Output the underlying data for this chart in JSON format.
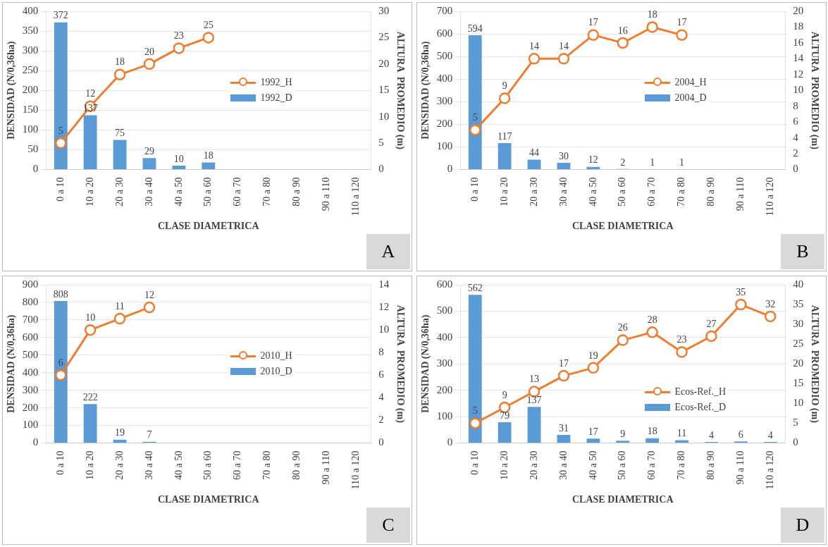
{
  "chart_data": [
    {
      "type": "bar",
      "categories": [
        "0 a 10",
        "10 a 20",
        "20 a 30",
        "30 a 40",
        "40 a 50",
        "50 a 60",
        "60 a 70",
        "70 a 80",
        "80 a 90",
        "90 a 110",
        "110 a 120"
      ],
      "series": [
        {
          "name": "1992_D",
          "color": "#5b9bd5",
          "values": [
            372,
            137,
            75,
            29,
            10,
            18,
            null,
            null,
            null,
            null,
            null
          ]
        },
        {
          "name": "1992_H",
          "type": "line",
          "axis": "y2",
          "color": "#ed7d31",
          "values": [
            5,
            12,
            18,
            20,
            23,
            25,
            null,
            null,
            null,
            null,
            null
          ]
        }
      ],
      "xlabel": "CLASE DIAMETRICA",
      "ylabel": "DENSIDAD (N/0,36ha)",
      "y2label": "ALTURA  PROMEDIO (m)",
      "ylim": [
        0,
        400
      ],
      "yticks": [
        0,
        50,
        100,
        150,
        200,
        250,
        300,
        350,
        400
      ],
      "y2lim": [
        0,
        30
      ],
      "y2ticks": [
        0,
        5,
        10,
        15,
        20,
        25,
        30
      ],
      "grid": "y",
      "legend": "right",
      "marker": "circle",
      "data_labels": true,
      "annotations": [
        "A"
      ]
    },
    {
      "type": "bar",
      "categories": [
        "0 a 10",
        "10 a 20",
        "20 a 30",
        "30 a 40",
        "40 a 50",
        "50 a 60",
        "60 a 70",
        "70 a 80",
        "80 a 90",
        "90 a 110",
        "110 a 120"
      ],
      "series": [
        {
          "name": "2004_D",
          "color": "#5b9bd5",
          "values": [
            594,
            117,
            44,
            30,
            12,
            2,
            1,
            1,
            null,
            null,
            null
          ]
        },
        {
          "name": "2004_H",
          "type": "line",
          "axis": "y2",
          "color": "#ed7d31",
          "values": [
            5,
            9,
            14,
            14,
            17,
            16,
            18,
            17,
            null,
            null,
            null
          ]
        }
      ],
      "xlabel": "CLASE DIAMETRICA",
      "ylabel": "DENSIDAD (N/0,36ha)",
      "y2label": "ALTURA  PROMEDIO (m)",
      "ylim": [
        0,
        700
      ],
      "yticks": [
        0,
        100,
        200,
        300,
        400,
        500,
        600,
        700
      ],
      "y2lim": [
        0,
        20
      ],
      "y2ticks": [
        0,
        2,
        4,
        6,
        8,
        10,
        12,
        14,
        16,
        18,
        20
      ],
      "grid": "y",
      "legend": "right",
      "marker": "circle",
      "data_labels": true,
      "annotations": [
        "B"
      ]
    },
    {
      "type": "bar",
      "categories": [
        "0 a 10",
        "10 a 20",
        "20 a 30",
        "30 a 40",
        "40 a 50",
        "50 a 60",
        "60 a 70",
        "70 a 80",
        "80 a 90",
        "90 a 110",
        "110 a 120"
      ],
      "series": [
        {
          "name": "2010_D",
          "color": "#5b9bd5",
          "values": [
            808,
            222,
            19,
            7,
            null,
            null,
            null,
            null,
            null,
            null,
            null
          ]
        },
        {
          "name": "2010_H",
          "type": "line",
          "axis": "y2",
          "color": "#ed7d31",
          "values": [
            6,
            10,
            11,
            12,
            null,
            null,
            null,
            null,
            null,
            null,
            null
          ]
        }
      ],
      "xlabel": "CLASE DIAMETRICA",
      "ylabel": "DENSIDAD (N/0,36ha)",
      "y2label": "ALTURA  PROMEDIO (m)",
      "ylim": [
        0,
        900
      ],
      "yticks": [
        0,
        100,
        200,
        300,
        400,
        500,
        600,
        700,
        800,
        900
      ],
      "y2lim": [
        0,
        14
      ],
      "y2ticks": [
        0,
        2,
        4,
        6,
        8,
        10,
        12,
        14
      ],
      "grid": "y",
      "legend": "right",
      "marker": "circle",
      "data_labels": true,
      "annotations": [
        "C"
      ]
    },
    {
      "type": "bar",
      "categories": [
        "0 a 10",
        "10 a 20",
        "20 a 30",
        "30 a 40",
        "40 a 50",
        "50 a 60",
        "60 a 70",
        "70 a 80",
        "80 a 90",
        "90 a 110",
        "110 a 120"
      ],
      "series": [
        {
          "name": "Ecos-Ref._D",
          "color": "#5b9bd5",
          "values": [
            562,
            79,
            137,
            31,
            17,
            9,
            18,
            11,
            4,
            6,
            4
          ]
        },
        {
          "name": "Ecos-Ref._H",
          "type": "line",
          "axis": "y2",
          "color": "#ed7d31",
          "values": [
            5,
            9,
            13,
            17,
            19,
            26,
            28,
            23,
            27,
            35,
            32
          ]
        }
      ],
      "xlabel": "CLASE DIAMETRICA",
      "ylabel": "DENSIDAD (N/0,36ha)",
      "y2label": "ALTURA  PROMEDIO (m)",
      "ylim": [
        0,
        600
      ],
      "yticks": [
        0,
        100,
        200,
        300,
        400,
        500,
        600
      ],
      "y2lim": [
        0,
        40
      ],
      "y2ticks": [
        0,
        5,
        10,
        15,
        20,
        25,
        30,
        35,
        40
      ],
      "grid": "y",
      "legend": "bottom right",
      "marker": "circle",
      "data_labels": true,
      "annotations": [
        "D"
      ]
    }
  ]
}
